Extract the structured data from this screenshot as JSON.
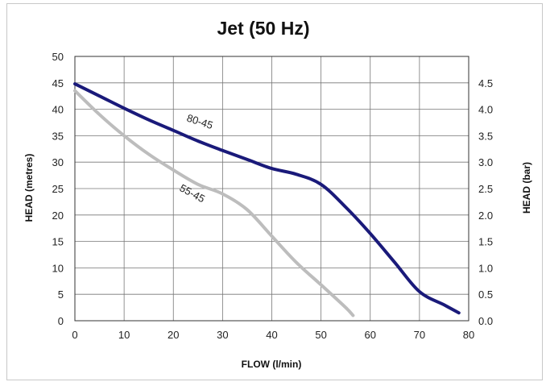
{
  "chart_data": {
    "type": "line",
    "title": "Jet (50 Hz)",
    "xlabel": "FLOW (l/min)",
    "ylabel": "HEAD (metres)",
    "y2label": "HEAD (bar)",
    "xlim": [
      0,
      80
    ],
    "ylim": [
      0,
      50
    ],
    "y2lim": [
      0,
      5
    ],
    "x_ticks": [
      0,
      10,
      20,
      30,
      40,
      50,
      60,
      70,
      80
    ],
    "y_ticks": [
      0,
      5,
      10,
      15,
      20,
      25,
      30,
      35,
      40,
      45,
      50
    ],
    "y2_ticks": [
      "0.0",
      "0.5",
      "1.0",
      "1.5",
      "2.0",
      "2.5",
      "3.0",
      "3.5",
      "4.0",
      "4.5"
    ],
    "grid": true,
    "series": [
      {
        "name": "80-45",
        "color": "#1a1a7a",
        "points": [
          [
            0,
            44.8
          ],
          [
            5,
            42.5
          ],
          [
            10,
            40.2
          ],
          [
            15,
            38.0
          ],
          [
            20,
            36.0
          ],
          [
            25,
            34.0
          ],
          [
            30,
            32.2
          ],
          [
            35,
            30.5
          ],
          [
            40,
            28.8
          ],
          [
            45,
            27.7
          ],
          [
            50,
            25.8
          ],
          [
            55,
            21.5
          ],
          [
            60,
            16.5
          ],
          [
            65,
            11.0
          ],
          [
            70,
            5.5
          ],
          [
            75,
            3.0
          ],
          [
            78,
            1.5
          ]
        ]
      },
      {
        "name": "55-45",
        "color": "#bdbdbd",
        "points": [
          [
            0,
            43.5
          ],
          [
            5,
            39.0
          ],
          [
            10,
            35.0
          ],
          [
            15,
            31.5
          ],
          [
            20,
            28.5
          ],
          [
            25,
            25.8
          ],
          [
            30,
            24.0
          ],
          [
            35,
            21.0
          ],
          [
            40,
            16.0
          ],
          [
            45,
            11.0
          ],
          [
            50,
            6.8
          ],
          [
            55,
            2.5
          ],
          [
            56.5,
            1.0
          ]
        ]
      }
    ]
  }
}
